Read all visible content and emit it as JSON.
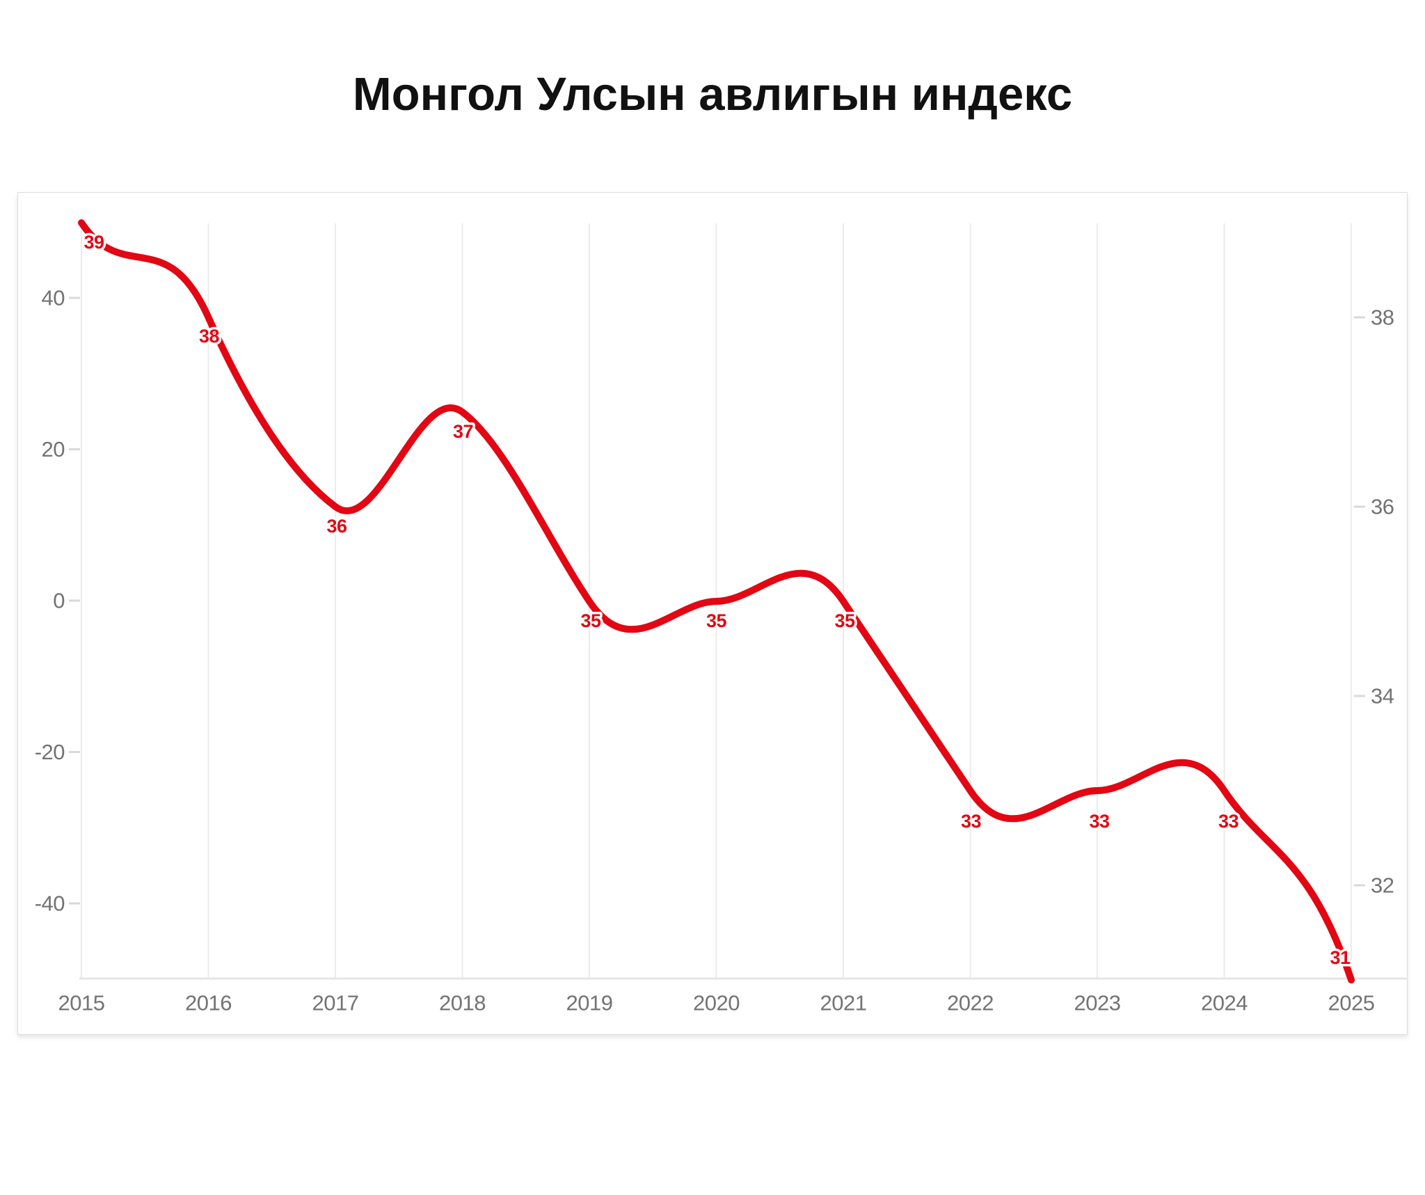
{
  "page": {
    "title": "Монгол Улсын авлигын индекс"
  },
  "chart_data": {
    "type": "line",
    "title": "Монгол Улсын авлигын индекс",
    "categories": [
      "2015",
      "2016",
      "2017",
      "2018",
      "2019",
      "2020",
      "2021",
      "2022",
      "2023",
      "2024",
      "2025"
    ],
    "series": [
      {
        "name": "",
        "values": [
          39,
          38,
          36,
          37,
          35,
          35,
          35,
          33,
          33,
          33,
          31
        ]
      }
    ],
    "data_labels": [
      "39",
      "38",
      "36",
      "37",
      "35",
      "35",
      "35",
      "33",
      "33",
      "33",
      "31"
    ],
    "xlabel": "",
    "ylabel": "",
    "left_axis_ticks": [
      40,
      20,
      0,
      -20,
      -40
    ],
    "right_axis_ticks": [
      38,
      36,
      34,
      32
    ],
    "left_axis_range": [
      -50,
      52
    ],
    "right_axis_range": [
      30.7,
      39.3
    ],
    "curve": "smooth",
    "grid": "vertical-yearly-only",
    "legend": "none",
    "line_color": "#e30613",
    "data_label_color": "#e30613",
    "axis_text_color": "#737373",
    "gridline_color": "#ebebeb",
    "axis_line_color": "#e4e4e4",
    "tick_color": "#d9d9d9",
    "background_color": "#ffffff"
  }
}
